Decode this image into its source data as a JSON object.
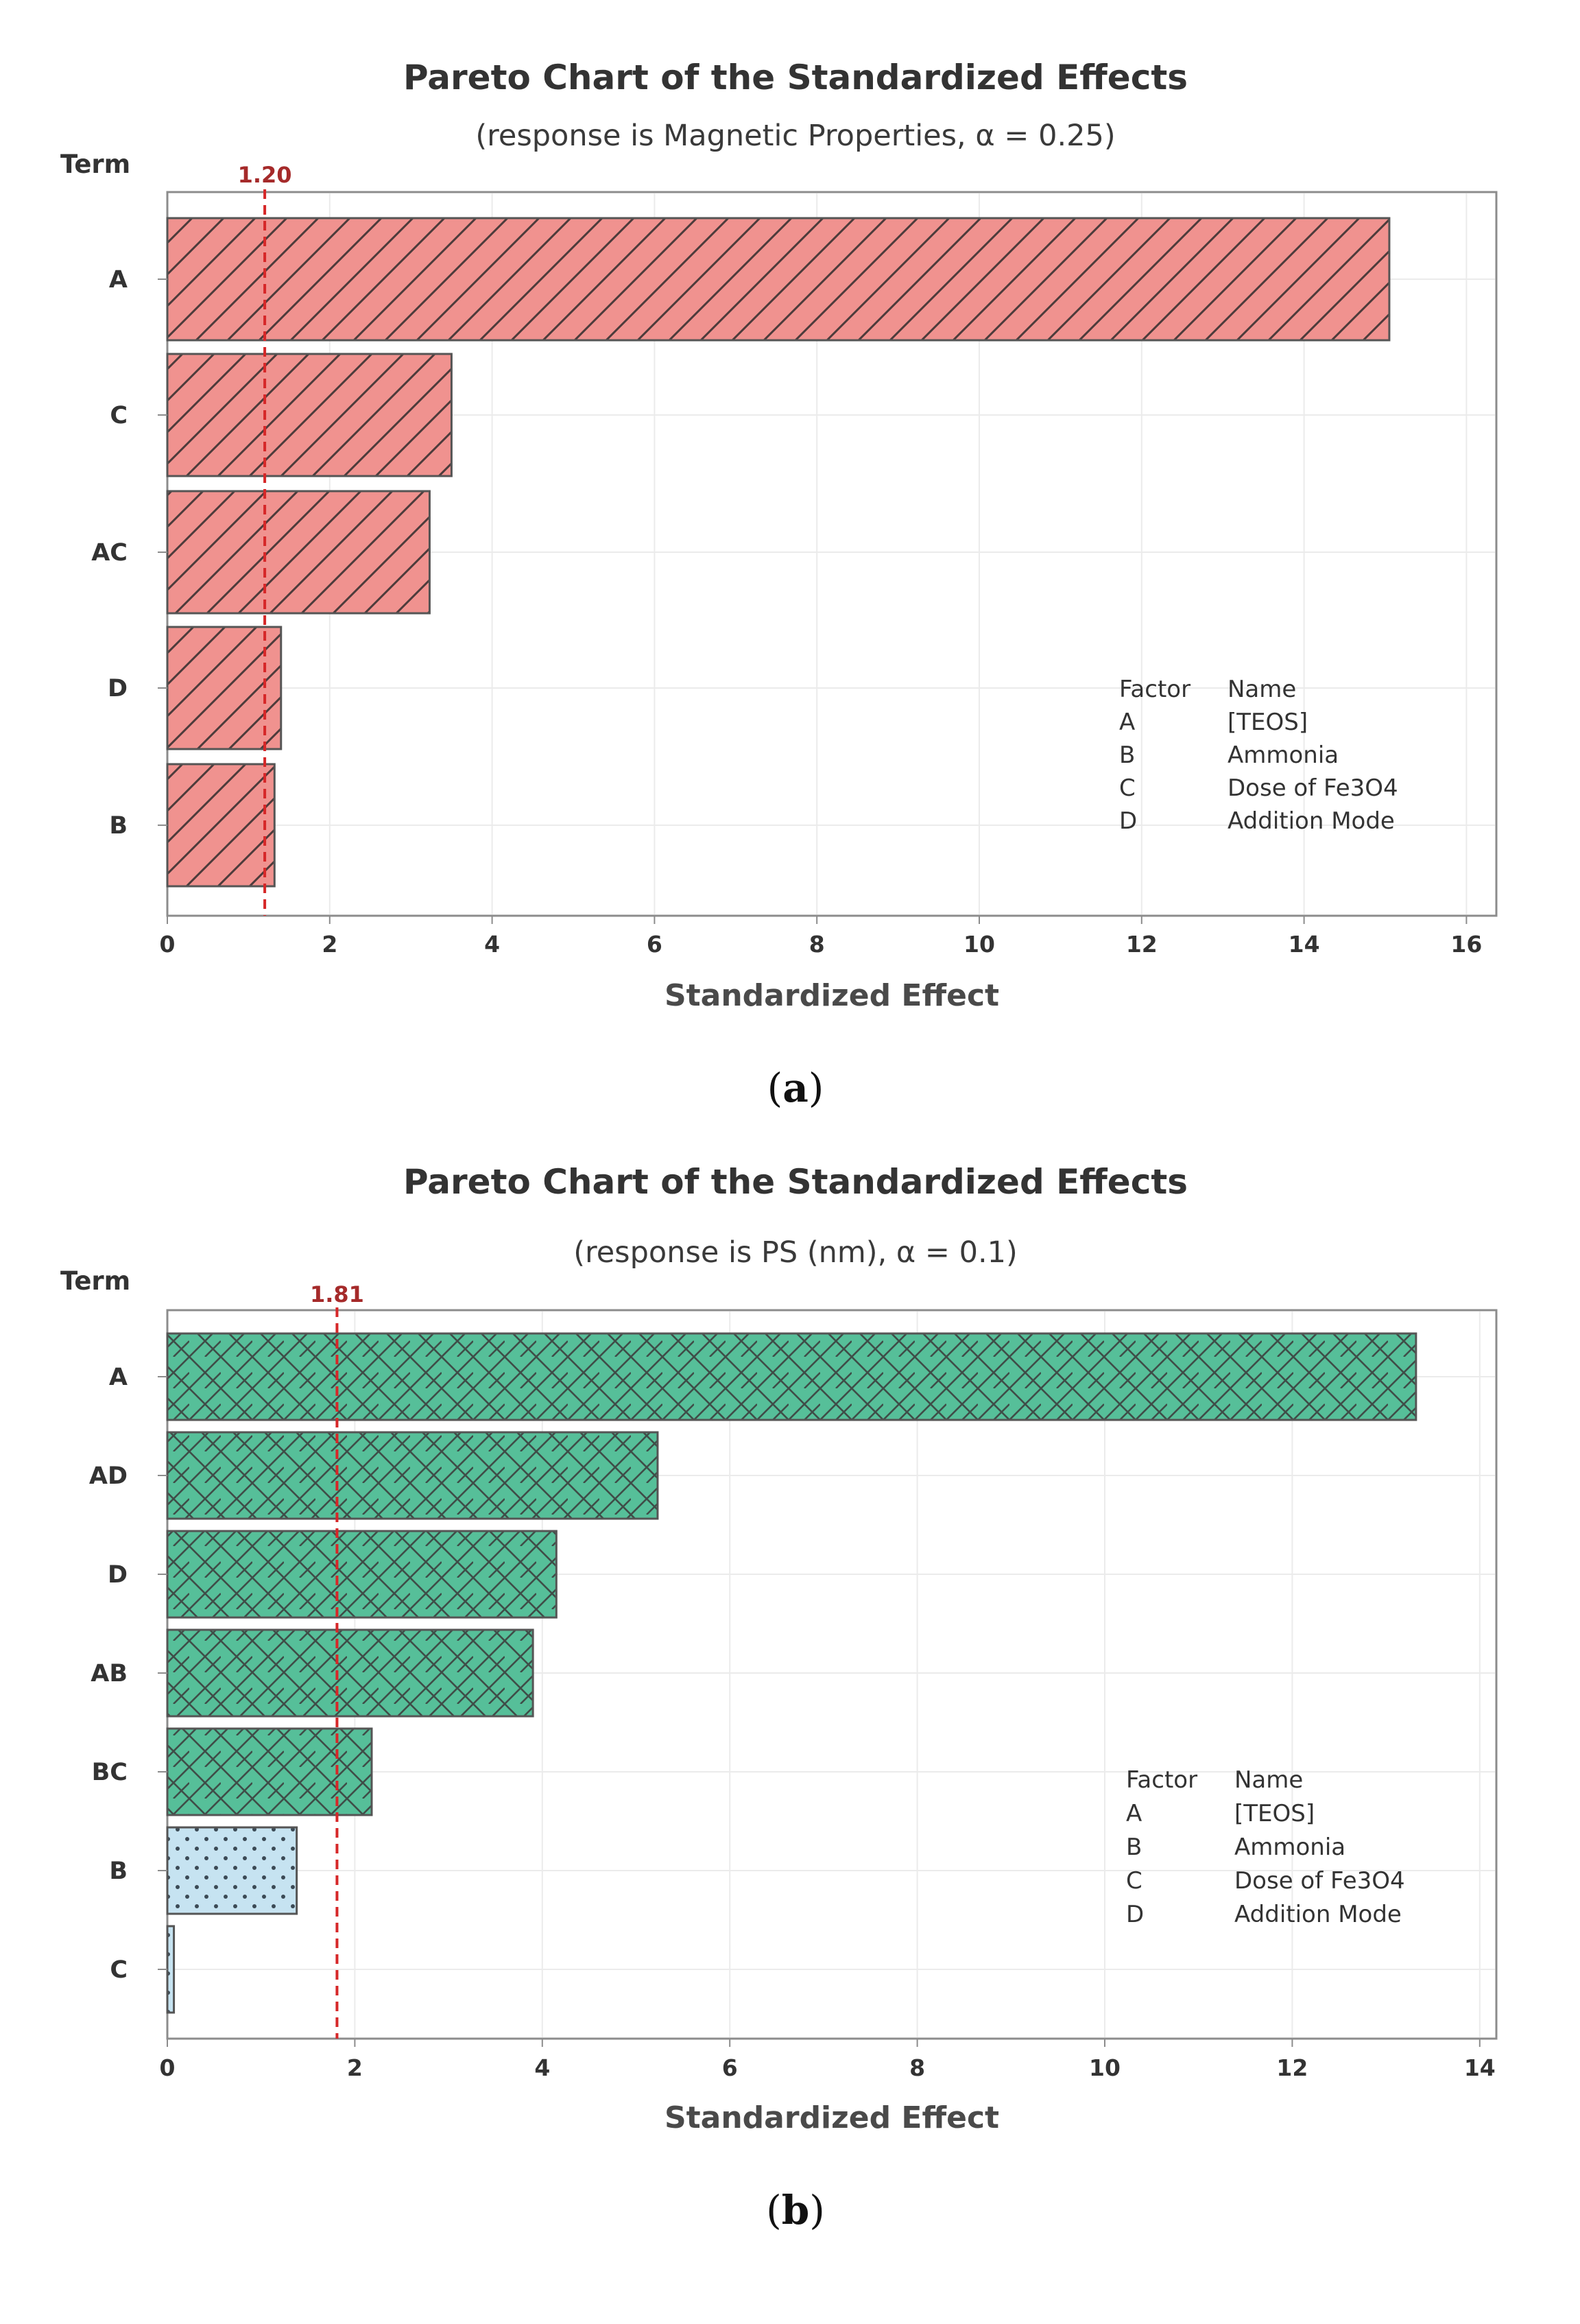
{
  "chart_data": [
    {
      "type": "bar",
      "orientation": "horizontal",
      "panel_label": "a",
      "title": "Pareto Chart of the Standardized Effects",
      "subtitle": "(response is Magnetic Properties, α = 0.25)",
      "ylabel": "Term",
      "xlabel": "Standardized Effect",
      "xlim": [
        0,
        16
      ],
      "xticks": [
        0,
        2,
        4,
        6,
        8,
        10,
        12,
        14,
        16
      ],
      "grid": true,
      "reference_line": {
        "value": 1.2,
        "label": "1.20",
        "color": "#d62728"
      },
      "categories": [
        "A",
        "C",
        "AC",
        "D",
        "B"
      ],
      "values": [
        15.05,
        3.5,
        3.23,
        1.4,
        1.32
      ],
      "bar_style": [
        "significant",
        "significant",
        "significant",
        "significant",
        "significant"
      ],
      "styles": {
        "significant": {
          "fill": "#f0928f",
          "pattern": "diagonal"
        }
      },
      "legend": {
        "position": "bottom-right",
        "header": [
          "Factor",
          "Name"
        ],
        "rows": [
          [
            "A",
            "[TEOS]"
          ],
          [
            "B",
            "Ammonia"
          ],
          [
            "C",
            "Dose of Fe3O4"
          ],
          [
            "D",
            "Addition Mode"
          ]
        ]
      }
    },
    {
      "type": "bar",
      "orientation": "horizontal",
      "panel_label": "b",
      "title": "Pareto Chart of the Standardized Effects",
      "subtitle": "(response is PS (nm), α = 0.1)",
      "ylabel": "Term",
      "xlabel": "Standardized Effect",
      "xlim": [
        0,
        14
      ],
      "xticks": [
        0,
        2,
        4,
        6,
        8,
        10,
        12,
        14
      ],
      "grid": true,
      "reference_line": {
        "value": 1.81,
        "label": "1.81",
        "color": "#d62728"
      },
      "categories": [
        "A",
        "AD",
        "D",
        "AB",
        "BC",
        "B",
        "C"
      ],
      "values": [
        13.32,
        5.23,
        4.15,
        3.9,
        2.18,
        1.38,
        0.07
      ],
      "bar_style": [
        "significant",
        "significant",
        "significant",
        "significant",
        "significant",
        "nonsignificant",
        "nonsignificant"
      ],
      "styles": {
        "significant": {
          "fill": "#56bf99",
          "pattern": "crosshatch"
        },
        "nonsignificant": {
          "fill": "#c6e3f1",
          "pattern": "dots"
        }
      },
      "legend": {
        "position": "bottom-right",
        "header": [
          "Factor",
          "Name"
        ],
        "rows": [
          [
            "A",
            "[TEOS]"
          ],
          [
            "B",
            "Ammonia"
          ],
          [
            "C",
            "Dose of Fe3O4"
          ],
          [
            "D",
            "Addition Mode"
          ]
        ]
      }
    }
  ]
}
